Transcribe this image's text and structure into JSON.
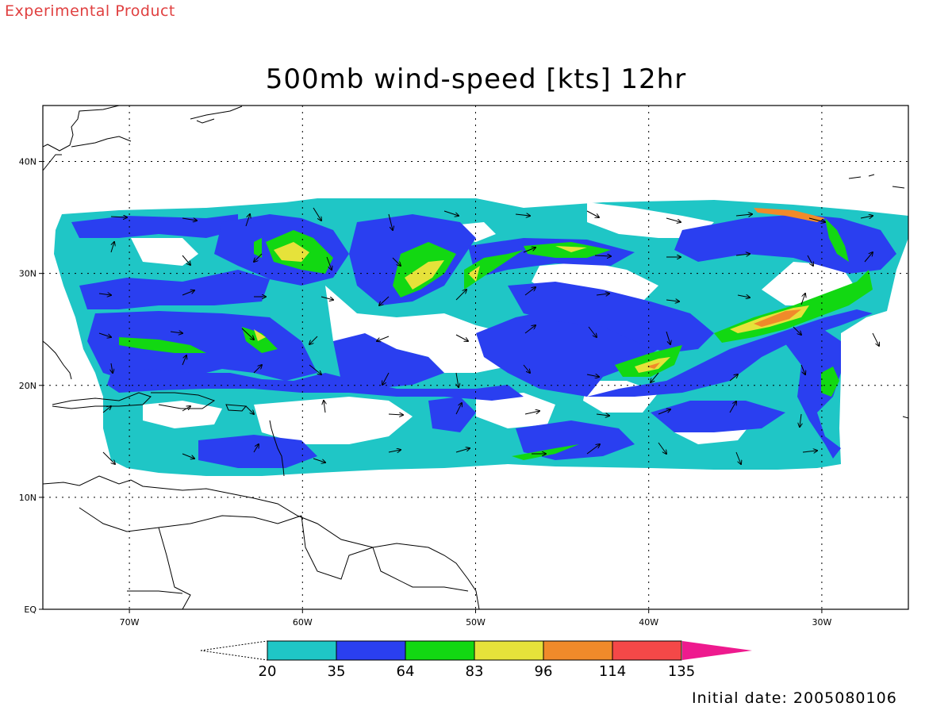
{
  "header": {
    "experimental": "Experimental Product",
    "title": "500mb wind-speed [kts] 12hr"
  },
  "footer": {
    "initial_date": "Initial date: 2005080106"
  },
  "map": {
    "lon_range": [
      -75,
      -25
    ],
    "lat_range": [
      0,
      45
    ],
    "lat_ticks": [
      {
        "value": 40,
        "label": "40N"
      },
      {
        "value": 30,
        "label": "30N"
      },
      {
        "value": 20,
        "label": "20N"
      },
      {
        "value": 10,
        "label": "10N"
      },
      {
        "value": 0,
        "label": "EQ"
      }
    ],
    "lon_ticks": [
      {
        "value": -70,
        "label": "70W"
      },
      {
        "value": -60,
        "label": "60W"
      },
      {
        "value": -50,
        "label": "50W"
      },
      {
        "value": -40,
        "label": "40W"
      },
      {
        "value": -30,
        "label": "30W"
      }
    ],
    "data_domain": {
      "lon": [
        -74,
        -25
      ],
      "lat": [
        12,
        37
      ]
    }
  },
  "colorbar": {
    "levels": [
      20,
      35,
      64,
      83,
      96,
      114,
      135
    ],
    "colors": [
      "#1fc6c6",
      "#2a3ff0",
      "#12d812",
      "#e6e23a",
      "#f08a2a",
      "#f44848",
      "#ee1a8e"
    ],
    "labels": [
      "20",
      "35",
      "64",
      "83",
      "96",
      "114",
      "135"
    ]
  }
}
